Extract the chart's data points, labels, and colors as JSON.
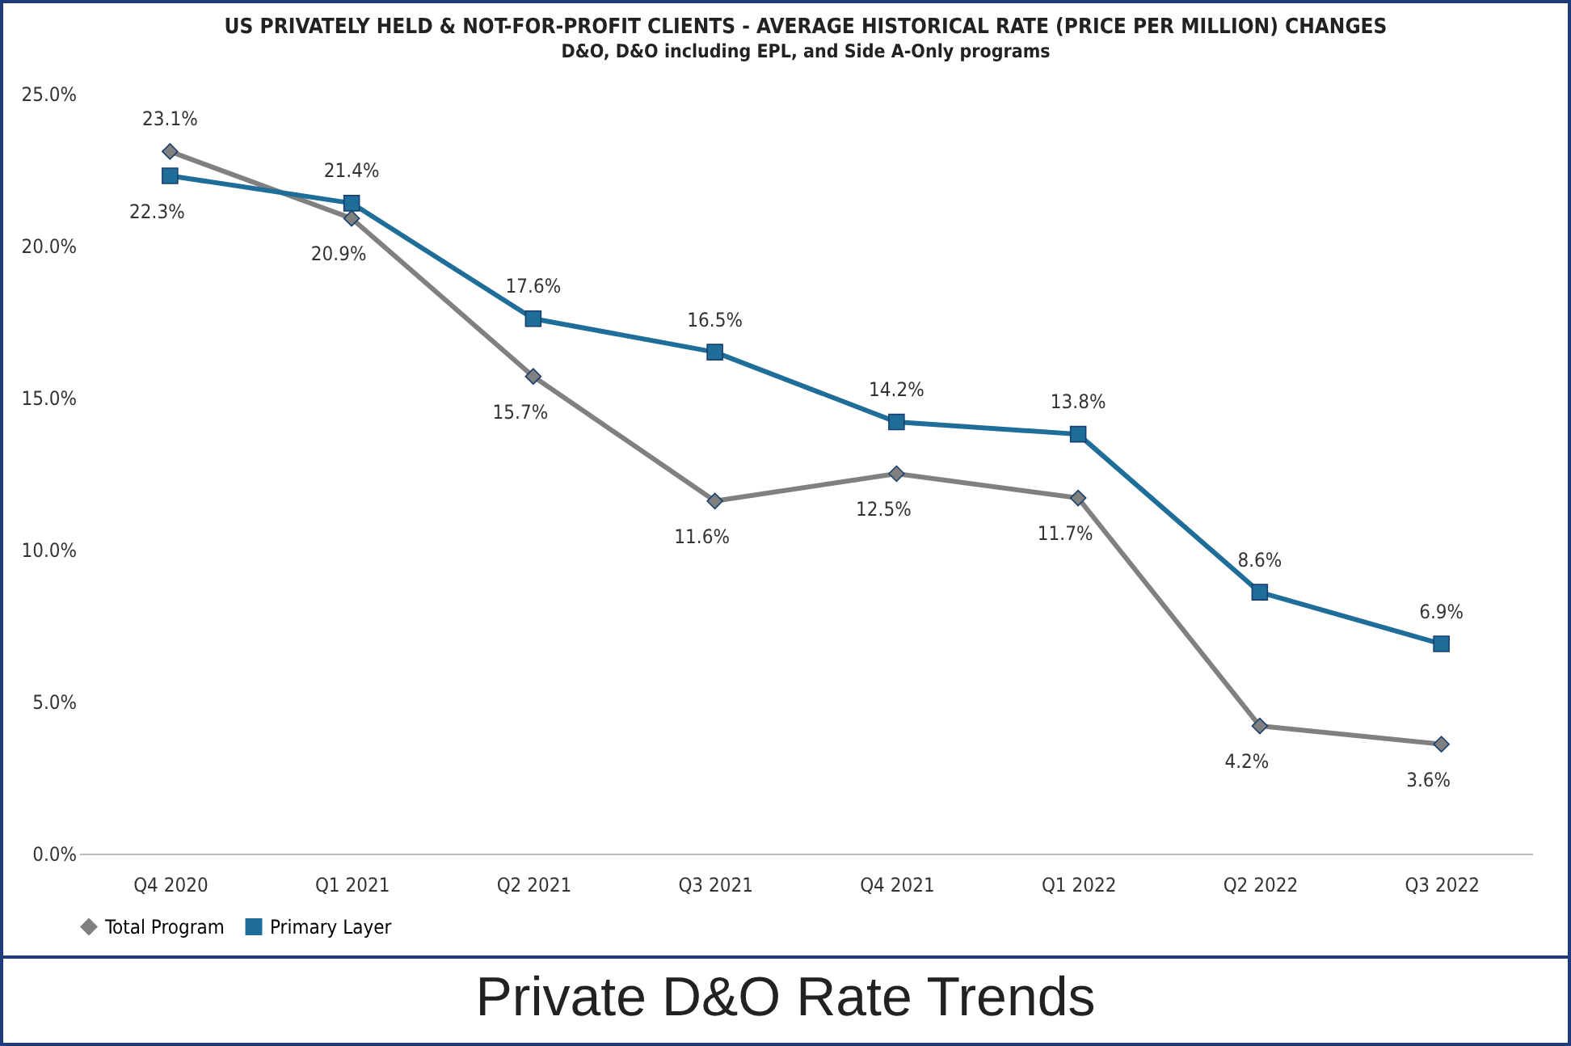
{
  "chart_data": {
    "type": "line",
    "title": "US PRIVATELY HELD & NOT-FOR-PROFIT CLIENTS - AVERAGE HISTORICAL RATE (PRICE PER MILLION) CHANGES",
    "subtitle": "D&O, D&O including EPL, and Side A-Only programs",
    "categories": [
      "Q4 2020",
      "Q1 2021",
      "Q2 2021",
      "Q3 2021",
      "Q4 2021",
      "Q1 2022",
      "Q2 2022",
      "Q3 2022"
    ],
    "series": [
      {
        "name": "Total Program",
        "color": "#808080",
        "marker": "diamond",
        "values": [
          23.1,
          20.9,
          15.7,
          11.6,
          12.5,
          11.7,
          4.2,
          3.6
        ],
        "value_labels": [
          "23.1%",
          "20.9%",
          "15.7%",
          "11.6%",
          "12.5%",
          "11.7%",
          "4.2%",
          "3.6%"
        ]
      },
      {
        "name": "Primary Layer",
        "color": "#1f6e9a",
        "marker": "square",
        "values": [
          22.3,
          21.4,
          17.6,
          16.5,
          14.2,
          13.8,
          8.6,
          6.9
        ],
        "value_labels": [
          "22.3%",
          "21.4%",
          "17.6%",
          "16.5%",
          "14.2%",
          "13.8%",
          "8.6%",
          "6.9%"
        ]
      }
    ],
    "ylim": [
      0,
      25
    ],
    "yticks": [
      {
        "value": 0,
        "label": "0.0%"
      },
      {
        "value": 5,
        "label": "5.0%"
      },
      {
        "value": 10,
        "label": "10.0%"
      },
      {
        "value": 15,
        "label": "15.0%"
      },
      {
        "value": 20,
        "label": "20.0%"
      },
      {
        "value": 25,
        "label": "25.0%"
      }
    ],
    "legend": "bottom",
    "line_style": "solid",
    "annotations": [
      "Private D&O Rate Trends"
    ]
  }
}
